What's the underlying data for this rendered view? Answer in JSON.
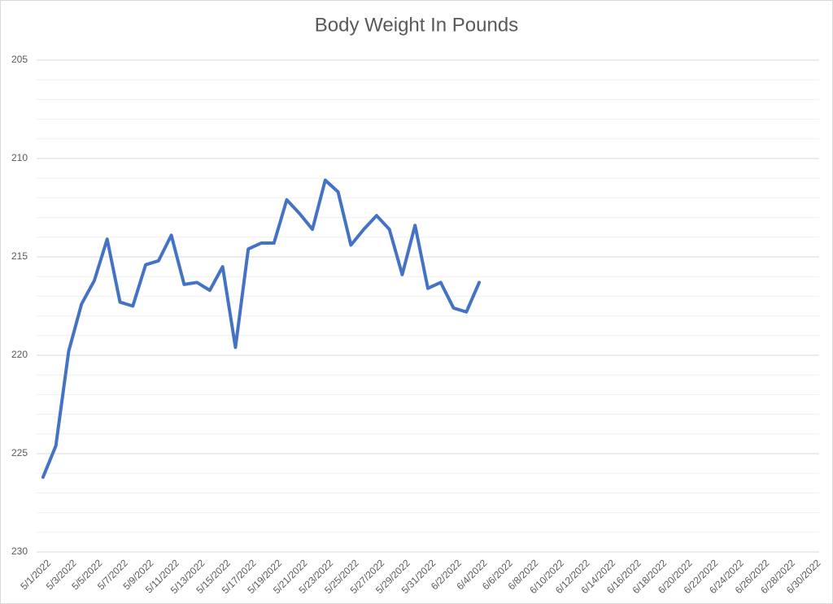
{
  "chart_data": {
    "type": "line",
    "title": "Body Weight In Pounds",
    "categories": [
      "5/1/2022",
      null,
      "5/3/2022",
      null,
      "5/5/2022",
      null,
      "5/7/2022",
      null,
      "5/9/2022",
      null,
      "5/11/2022",
      null,
      "5/13/2022",
      null,
      "5/15/2022",
      null,
      "5/17/2022",
      null,
      "5/19/2022",
      null,
      "5/21/2022",
      null,
      "5/23/2022",
      null,
      "5/25/2022",
      null,
      "5/27/2022",
      null,
      "5/29/2022",
      null,
      "5/31/2022",
      null,
      "6/2/2022",
      null,
      "6/4/2022",
      null,
      "6/6/2022",
      null,
      "6/8/2022",
      null,
      "6/10/2022",
      null,
      "6/12/2022",
      null,
      "6/14/2022",
      null,
      "6/16/2022",
      null,
      "6/18/2022",
      null,
      "6/20/2022",
      null,
      "6/22/2022",
      null,
      "6/24/2022",
      null,
      "6/26/2022",
      null,
      "6/28/2022",
      null,
      "6/30/2022"
    ],
    "series": [
      {
        "name": "Body Weight",
        "color": "#4472c4",
        "values": [
          226.2,
          224.6,
          219.8,
          217.4,
          216.2,
          214.1,
          217.3,
          217.5,
          215.4,
          215.2,
          213.9,
          216.4,
          216.3,
          216.7,
          215.5,
          219.6,
          214.6,
          214.3,
          214.3,
          212.1,
          212.8,
          213.6,
          211.1,
          211.7,
          214.4,
          213.6,
          212.9,
          213.6,
          215.9,
          213.4,
          216.6,
          216.3,
          217.6,
          217.8,
          216.3,
          null,
          null,
          null,
          null,
          null,
          null,
          null,
          null,
          null,
          null,
          null,
          null,
          null,
          null,
          null,
          null,
          null,
          null,
          null,
          null,
          null,
          null,
          null,
          null,
          null,
          null
        ]
      }
    ],
    "ylim": [
      230,
      205
    ],
    "yticks": [
      205,
      210,
      215,
      220,
      225,
      230
    ],
    "minor_yticks": [
      206,
      207,
      208,
      209,
      211,
      212,
      213,
      214,
      216,
      217,
      218,
      219,
      221,
      222,
      223,
      224,
      226,
      227,
      228,
      229
    ],
    "grid": true
  }
}
